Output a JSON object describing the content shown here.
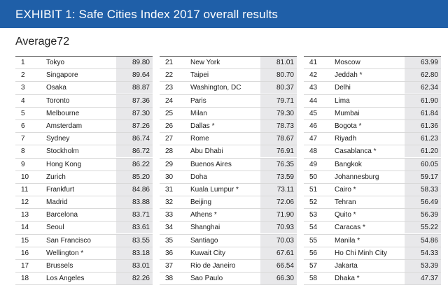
{
  "header": {
    "title": "EXHIBIT 1: Safe Cities Index 2017 overall results",
    "color": "#1f5fa8"
  },
  "average_label": "Average72",
  "columns": [
    [
      {
        "rank": "1",
        "city": "Tokyo",
        "score": "89.80"
      },
      {
        "rank": "2",
        "city": "Singapore",
        "score": "89.64"
      },
      {
        "rank": "3",
        "city": "Osaka",
        "score": "88.87"
      },
      {
        "rank": "4",
        "city": "Toronto",
        "score": "87.36"
      },
      {
        "rank": "5",
        "city": "Melbourne",
        "score": "87.30"
      },
      {
        "rank": "6",
        "city": "Amsterdam",
        "score": "87.26"
      },
      {
        "rank": "7",
        "city": "Sydney",
        "score": "86.74"
      },
      {
        "rank": "8",
        "city": "Stockholm",
        "score": "86.72"
      },
      {
        "rank": "9",
        "city": "Hong Kong",
        "score": "86.22"
      },
      {
        "rank": "10",
        "city": "Zurich",
        "score": "85.20"
      },
      {
        "rank": "11",
        "city": "Frankfurt",
        "score": "84.86"
      },
      {
        "rank": "12",
        "city": "Madrid",
        "score": "83.88"
      },
      {
        "rank": "13",
        "city": "Barcelona",
        "score": "83.71"
      },
      {
        "rank": "14",
        "city": "Seoul",
        "score": "83.61"
      },
      {
        "rank": "15",
        "city": "San Francisco",
        "score": "83.55"
      },
      {
        "rank": "16",
        "city": "Wellington *",
        "score": "83.18"
      },
      {
        "rank": "17",
        "city": "Brussels",
        "score": "83.01"
      },
      {
        "rank": "18",
        "city": "Los Angeles",
        "score": "82.26"
      }
    ],
    [
      {
        "rank": "21",
        "city": "New York",
        "score": "81.01"
      },
      {
        "rank": "22",
        "city": "Taipei",
        "score": "80.70"
      },
      {
        "rank": "23",
        "city": "Washington, DC",
        "score": "80.37"
      },
      {
        "rank": "24",
        "city": "Paris",
        "score": "79.71"
      },
      {
        "rank": "25",
        "city": "Milan",
        "score": "79.30"
      },
      {
        "rank": "26",
        "city": "Dallas *",
        "score": "78.73"
      },
      {
        "rank": "27",
        "city": "Rome",
        "score": "78.67"
      },
      {
        "rank": "28",
        "city": "Abu Dhabi",
        "score": "76.91"
      },
      {
        "rank": "29",
        "city": "Buenos Aires",
        "score": "76.35"
      },
      {
        "rank": "30",
        "city": "Doha",
        "score": "73.59"
      },
      {
        "rank": "31",
        "city": "Kuala Lumpur *",
        "score": "73.11"
      },
      {
        "rank": "32",
        "city": "Beijing",
        "score": "72.06"
      },
      {
        "rank": "33",
        "city": "Athens *",
        "score": "71.90"
      },
      {
        "rank": "34",
        "city": "Shanghai",
        "score": "70.93"
      },
      {
        "rank": "35",
        "city": "Santiago",
        "score": "70.03"
      },
      {
        "rank": "36",
        "city": "Kuwait City",
        "score": "67.61"
      },
      {
        "rank": "37",
        "city": "Rio de Janeiro",
        "score": "66.54"
      },
      {
        "rank": "38",
        "city": "Sao Paulo",
        "score": "66.30"
      }
    ],
    [
      {
        "rank": "41",
        "city": "Moscow",
        "score": "63.99"
      },
      {
        "rank": "42",
        "city": "Jeddah *",
        "score": "62.80"
      },
      {
        "rank": "43",
        "city": "Delhi",
        "score": "62.34"
      },
      {
        "rank": "44",
        "city": "Lima",
        "score": "61.90"
      },
      {
        "rank": "45",
        "city": "Mumbai",
        "score": "61.84"
      },
      {
        "rank": "46",
        "city": "Bogota *",
        "score": "61.36"
      },
      {
        "rank": "47",
        "city": "Riyadh",
        "score": "61.23"
      },
      {
        "rank": "48",
        "city": "Casablanca *",
        "score": "61.20"
      },
      {
        "rank": "49",
        "city": "Bangkok",
        "score": "60.05"
      },
      {
        "rank": "50",
        "city": "Johannesburg",
        "score": "59.17"
      },
      {
        "rank": "51",
        "city": "Cairo *",
        "score": "58.33"
      },
      {
        "rank": "52",
        "city": "Tehran",
        "score": "56.49"
      },
      {
        "rank": "53",
        "city": "Quito *",
        "score": "56.39"
      },
      {
        "rank": "54",
        "city": "Caracas *",
        "score": "55.22"
      },
      {
        "rank": "55",
        "city": "Manila *",
        "score": "54.86"
      },
      {
        "rank": "56",
        "city": "Ho Chi Minh City",
        "score": "54.33"
      },
      {
        "rank": "57",
        "city": "Jakarta",
        "score": "53.39"
      },
      {
        "rank": "58",
        "city": "Dhaka *",
        "score": "47.37"
      }
    ]
  ]
}
